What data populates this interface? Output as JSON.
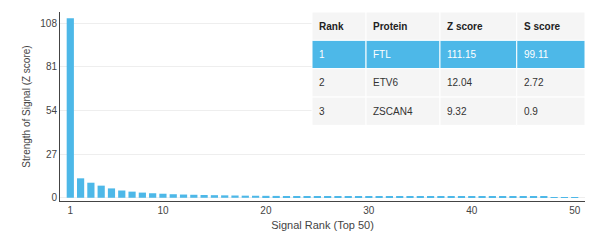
{
  "chart_data": {
    "type": "bar",
    "x": [
      1,
      2,
      3,
      4,
      5,
      6,
      7,
      8,
      9,
      10,
      11,
      12,
      13,
      14,
      15,
      16,
      17,
      18,
      19,
      20,
      21,
      22,
      23,
      24,
      25,
      26,
      27,
      28,
      29,
      30,
      31,
      32,
      33,
      34,
      35,
      36,
      37,
      38,
      39,
      40,
      41,
      42,
      43,
      44,
      45,
      46,
      47,
      48,
      49,
      50
    ],
    "values": [
      111.15,
      12.04,
      9.32,
      7.5,
      5.8,
      4.5,
      3.8,
      3.2,
      2.8,
      2.5,
      2.2,
      2.0,
      1.85,
      1.7,
      1.6,
      1.5,
      1.4,
      1.3,
      1.25,
      1.2,
      1.15,
      1.1,
      1.05,
      1.0,
      0.97,
      0.94,
      0.91,
      0.88,
      0.85,
      0.83,
      0.81,
      0.79,
      0.77,
      0.75,
      0.73,
      0.71,
      0.69,
      0.67,
      0.65,
      0.63,
      0.61,
      0.59,
      0.57,
      0.55,
      0.53,
      0.51,
      0.49,
      0.47,
      0.45,
      0.43
    ],
    "color": "#4db8e8",
    "xlabel": "Signal Rank (Top 50)",
    "ylabel": "Strength of Signal (Z score)",
    "xlim": [
      0,
      51
    ],
    "xticks": [
      1,
      10,
      20,
      30,
      40,
      50
    ],
    "ylim": [
      -2,
      115
    ],
    "yticks": [
      0,
      27,
      54,
      81,
      108
    ],
    "grid": "y",
    "table": {
      "headers": [
        "Rank",
        "Protein",
        "Z score",
        "S score"
      ],
      "rows": [
        [
          "1",
          "FTL",
          "111.15",
          "99.11"
        ],
        [
          "2",
          "ETV6",
          "12.04",
          "2.72"
        ],
        [
          "3",
          "ZSCAN4",
          "9.32",
          "0.9"
        ]
      ]
    }
  }
}
